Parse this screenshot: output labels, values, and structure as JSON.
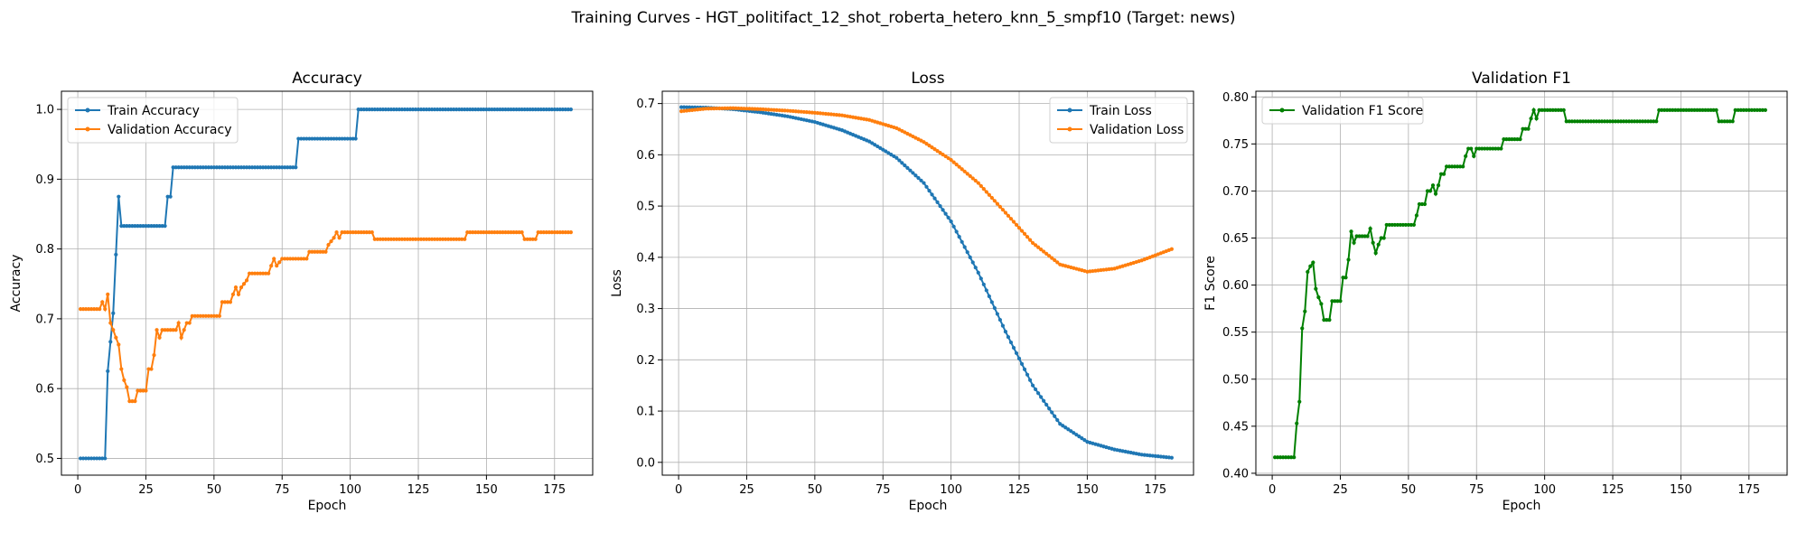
{
  "suptitle": "Training Curves - HGT_politifact_12_shot_roberta_hetero_knn_5_smpf10 (Target: news)",
  "colors": {
    "blue": "#1f77b4",
    "orange": "#ff7f0e",
    "green": "#008000"
  },
  "chart_data": [
    {
      "type": "line",
      "title": "Accuracy",
      "xlabel": "Epoch",
      "ylabel": "Accuracy",
      "xlim": [
        -6,
        189
      ],
      "ylim": [
        0.476,
        1.026
      ],
      "xticks": [
        0,
        25,
        50,
        75,
        100,
        125,
        150,
        175
      ],
      "yticks": [
        0.5,
        0.6,
        0.7,
        0.8,
        0.9,
        1.0
      ],
      "ytick_labels": [
        "0.5",
        "0.6",
        "0.7",
        "0.8",
        "0.9",
        "1.0"
      ],
      "grid": true,
      "legend": "upper left",
      "series": [
        {
          "name": "Train Accuracy",
          "color": "#1f77b4",
          "points": [
            [
              1,
              0.5
            ],
            [
              10,
              0.5
            ],
            [
              11,
              0.625
            ],
            [
              12,
              0.667
            ],
            [
              13,
              0.708
            ],
            [
              14,
              0.792
            ],
            [
              15,
              0.875
            ],
            [
              16,
              0.833
            ],
            [
              32,
              0.833
            ],
            [
              33,
              0.875
            ],
            [
              34,
              0.875
            ],
            [
              35,
              0.917
            ],
            [
              80,
              0.917
            ],
            [
              81,
              0.958
            ],
            [
              102,
              0.958
            ],
            [
              103,
              1.0
            ],
            [
              181,
              1.0
            ]
          ]
        },
        {
          "name": "Validation Accuracy",
          "color": "#ff7f0e",
          "points": [
            [
              1,
              0.714
            ],
            [
              8,
              0.714
            ],
            [
              9,
              0.724
            ],
            [
              10,
              0.714
            ],
            [
              11,
              0.735
            ],
            [
              12,
              0.694
            ],
            [
              13,
              0.684
            ],
            [
              14,
              0.673
            ],
            [
              15,
              0.663
            ],
            [
              16,
              0.628
            ],
            [
              17,
              0.612
            ],
            [
              18,
              0.602
            ],
            [
              19,
              0.582
            ],
            [
              21,
              0.582
            ],
            [
              22,
              0.597
            ],
            [
              25,
              0.597
            ],
            [
              26,
              0.628
            ],
            [
              27,
              0.628
            ],
            [
              28,
              0.648
            ],
            [
              29,
              0.684
            ],
            [
              30,
              0.673
            ],
            [
              31,
              0.684
            ],
            [
              36,
              0.684
            ],
            [
              37,
              0.694
            ],
            [
              38,
              0.673
            ],
            [
              39,
              0.684
            ],
            [
              40,
              0.694
            ],
            [
              41,
              0.694
            ],
            [
              42,
              0.704
            ],
            [
              52,
              0.704
            ],
            [
              53,
              0.724
            ],
            [
              56,
              0.724
            ],
            [
              57,
              0.735
            ],
            [
              58,
              0.745
            ],
            [
              59,
              0.735
            ],
            [
              60,
              0.745
            ],
            [
              62,
              0.755
            ],
            [
              63,
              0.765
            ],
            [
              70,
              0.765
            ],
            [
              71,
              0.776
            ],
            [
              72,
              0.786
            ],
            [
              73,
              0.776
            ],
            [
              75,
              0.786
            ],
            [
              84,
              0.786
            ],
            [
              85,
              0.796
            ],
            [
              91,
              0.796
            ],
            [
              92,
              0.806
            ],
            [
              94,
              0.816
            ],
            [
              95,
              0.824
            ],
            [
              96,
              0.816
            ],
            [
              97,
              0.824
            ],
            [
              108,
              0.824
            ],
            [
              109,
              0.814
            ],
            [
              142,
              0.814
            ],
            [
              143,
              0.824
            ],
            [
              163,
              0.824
            ],
            [
              164,
              0.814
            ],
            [
              168,
              0.814
            ],
            [
              169,
              0.824
            ],
            [
              181,
              0.824
            ]
          ]
        }
      ]
    },
    {
      "type": "line",
      "title": "Loss",
      "xlabel": "Epoch",
      "ylabel": "Loss",
      "xlim": [
        -6,
        189
      ],
      "ylim": [
        -0.025,
        0.724
      ],
      "xticks": [
        0,
        25,
        50,
        75,
        100,
        125,
        150,
        175
      ],
      "yticks": [
        0.0,
        0.1,
        0.2,
        0.3,
        0.4,
        0.5,
        0.6,
        0.7
      ],
      "ytick_labels": [
        "0.0",
        "0.1",
        "0.2",
        "0.3",
        "0.4",
        "0.5",
        "0.6",
        "0.7"
      ],
      "grid": true,
      "legend": "upper right",
      "series": [
        {
          "name": "Train Loss",
          "color": "#1f77b4",
          "points": [
            [
              1,
              0.693
            ],
            [
              10,
              0.692
            ],
            [
              20,
              0.689
            ],
            [
              30,
              0.683
            ],
            [
              40,
              0.675
            ],
            [
              50,
              0.664
            ],
            [
              60,
              0.648
            ],
            [
              70,
              0.626
            ],
            [
              80,
              0.594
            ],
            [
              90,
              0.545
            ],
            [
              100,
              0.47
            ],
            [
              110,
              0.37
            ],
            [
              120,
              0.255
            ],
            [
              130,
              0.15
            ],
            [
              140,
              0.075
            ],
            [
              150,
              0.04
            ],
            [
              160,
              0.025
            ],
            [
              170,
              0.015
            ],
            [
              181,
              0.009
            ]
          ]
        },
        {
          "name": "Validation Loss",
          "color": "#ff7f0e",
          "points": [
            [
              1,
              0.685
            ],
            [
              10,
              0.69
            ],
            [
              20,
              0.691
            ],
            [
              30,
              0.689
            ],
            [
              40,
              0.686
            ],
            [
              50,
              0.682
            ],
            [
              60,
              0.677
            ],
            [
              70,
              0.668
            ],
            [
              80,
              0.652
            ],
            [
              90,
              0.625
            ],
            [
              100,
              0.59
            ],
            [
              110,
              0.545
            ],
            [
              120,
              0.487
            ],
            [
              130,
              0.428
            ],
            [
              140,
              0.386
            ],
            [
              150,
              0.372
            ],
            [
              160,
              0.378
            ],
            [
              170,
              0.394
            ],
            [
              181,
              0.416
            ]
          ]
        }
      ]
    },
    {
      "type": "line",
      "title": "Validation F1",
      "xlabel": "Epoch",
      "ylabel": "F1 Score",
      "xlim": [
        -6,
        189
      ],
      "ylim": [
        0.398,
        0.806
      ],
      "xticks": [
        0,
        25,
        50,
        75,
        100,
        125,
        150,
        175
      ],
      "yticks": [
        0.4,
        0.45,
        0.5,
        0.55,
        0.6,
        0.65,
        0.7,
        0.75,
        0.8
      ],
      "ytick_labels": [
        "0.40",
        "0.45",
        "0.50",
        "0.55",
        "0.60",
        "0.65",
        "0.70",
        "0.75",
        "0.80"
      ],
      "grid": true,
      "legend": "upper left",
      "series": [
        {
          "name": "Validation F1 Score",
          "color": "#008000",
          "points": [
            [
              1,
              0.417
            ],
            [
              8,
              0.417
            ],
            [
              9,
              0.453
            ],
            [
              10,
              0.476
            ],
            [
              11,
              0.554
            ],
            [
              12,
              0.572
            ],
            [
              13,
              0.614
            ],
            [
              14,
              0.62
            ],
            [
              15,
              0.624
            ],
            [
              16,
              0.596
            ],
            [
              17,
              0.587
            ],
            [
              18,
              0.58
            ],
            [
              19,
              0.563
            ],
            [
              21,
              0.563
            ],
            [
              22,
              0.583
            ],
            [
              25,
              0.583
            ],
            [
              26,
              0.608
            ],
            [
              27,
              0.608
            ],
            [
              28,
              0.627
            ],
            [
              29,
              0.657
            ],
            [
              30,
              0.645
            ],
            [
              31,
              0.652
            ],
            [
              35,
              0.652
            ],
            [
              36,
              0.66
            ],
            [
              37,
              0.645
            ],
            [
              38,
              0.634
            ],
            [
              39,
              0.643
            ],
            [
              40,
              0.65
            ],
            [
              41,
              0.65
            ],
            [
              42,
              0.664
            ],
            [
              52,
              0.664
            ],
            [
              53,
              0.674
            ],
            [
              54,
              0.686
            ],
            [
              56,
              0.686
            ],
            [
              57,
              0.7
            ],
            [
              58,
              0.7
            ],
            [
              59,
              0.706
            ],
            [
              60,
              0.697
            ],
            [
              61,
              0.706
            ],
            [
              62,
              0.718
            ],
            [
              63,
              0.718
            ],
            [
              64,
              0.726
            ],
            [
              70,
              0.726
            ],
            [
              71,
              0.737
            ],
            [
              72,
              0.745
            ],
            [
              73,
              0.745
            ],
            [
              74,
              0.737
            ],
            [
              75,
              0.745
            ],
            [
              84,
              0.745
            ],
            [
              85,
              0.755
            ],
            [
              91,
              0.755
            ],
            [
              92,
              0.766
            ],
            [
              94,
              0.766
            ],
            [
              95,
              0.777
            ],
            [
              96,
              0.786
            ],
            [
              97,
              0.777
            ],
            [
              98,
              0.786
            ],
            [
              107,
              0.786
            ],
            [
              108,
              0.774
            ],
            [
              141,
              0.774
            ],
            [
              142,
              0.786
            ],
            [
              163,
              0.786
            ],
            [
              164,
              0.774
            ],
            [
              169,
              0.774
            ],
            [
              170,
              0.786
            ],
            [
              181,
              0.786
            ]
          ]
        }
      ]
    }
  ]
}
